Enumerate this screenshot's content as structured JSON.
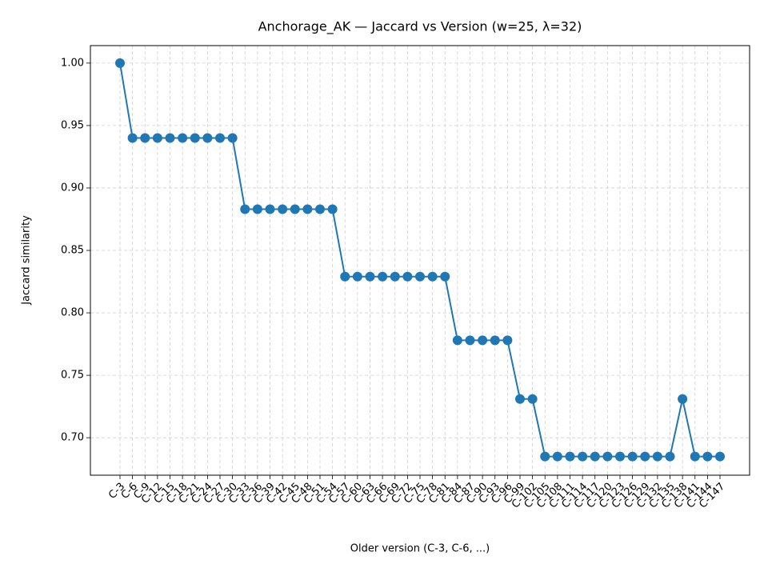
{
  "chart_data": {
    "type": "line",
    "title": "Anchorage_AK — Jaccard vs Version (w=25, λ=32)",
    "xlabel": "Older version (C-3, C-6, ...)",
    "ylabel": "Jaccard similarity",
    "categories": [
      "C-3",
      "C-6",
      "C-9",
      "C-12",
      "C-15",
      "C-18",
      "C-21",
      "C-24",
      "C-27",
      "C-30",
      "C-33",
      "C-36",
      "C-39",
      "C-42",
      "C-45",
      "C-48",
      "C-51",
      "C-54",
      "C-57",
      "C-60",
      "C-63",
      "C-66",
      "C-69",
      "C-72",
      "C-75",
      "C-78",
      "C-81",
      "C-84",
      "C-87",
      "C-90",
      "C-93",
      "C-96",
      "C-99",
      "C-102",
      "C-105",
      "C-108",
      "C-111",
      "C-114",
      "C-117",
      "C-120",
      "C-123",
      "C-126",
      "C-129",
      "C-132",
      "C-135",
      "C-138",
      "C-141",
      "C-144",
      "C-147"
    ],
    "series": [
      {
        "name": "Jaccard similarity",
        "color": "#1f77b4",
        "values": [
          1.0,
          0.94,
          0.94,
          0.94,
          0.94,
          0.94,
          0.94,
          0.94,
          0.94,
          0.94,
          0.883,
          0.883,
          0.883,
          0.883,
          0.883,
          0.883,
          0.883,
          0.883,
          0.829,
          0.829,
          0.829,
          0.829,
          0.829,
          0.829,
          0.829,
          0.829,
          0.829,
          0.778,
          0.778,
          0.778,
          0.778,
          0.778,
          0.731,
          0.731,
          0.685,
          0.685,
          0.685,
          0.685,
          0.685,
          0.685,
          0.685,
          0.685,
          0.685,
          0.685,
          0.685,
          0.731,
          0.685,
          0.685,
          0.685
        ]
      }
    ],
    "ylim": [
      0.67,
      1.014
    ],
    "yticks": [
      {
        "value": 0.7,
        "label": "0.70"
      },
      0.75,
      {
        "value": 0.8,
        "label": "0.80"
      },
      0.85,
      {
        "value": 0.9,
        "label": "0.90"
      },
      0.95,
      {
        "value": 1.0,
        "label": "1.00"
      }
    ],
    "grid": true
  }
}
